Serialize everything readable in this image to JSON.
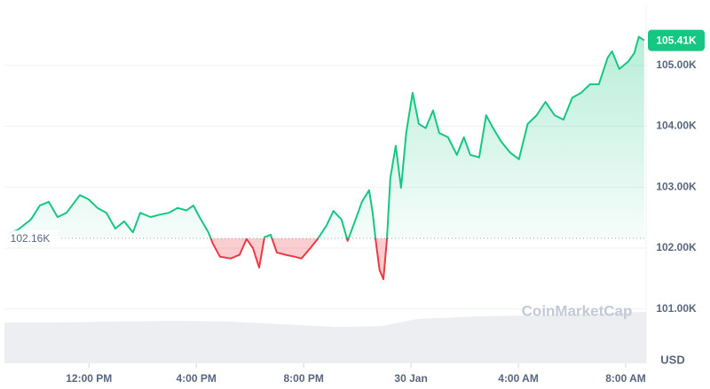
{
  "chart_data": {
    "type": "line",
    "xlim": [
      8.85,
      32.76
    ],
    "xticks": [
      {
        "value": 12,
        "label": "12:00 PM"
      },
      {
        "value": 16,
        "label": "4:00 PM"
      },
      {
        "value": 20,
        "label": "8:00 PM"
      },
      {
        "value": 24,
        "label": "30 Jan"
      },
      {
        "value": 28,
        "label": "4:00 AM"
      },
      {
        "value": 32,
        "label": "8:00 AM"
      }
    ],
    "ylim": [
      100.11,
      106.0
    ],
    "yticks": [
      {
        "value": 101,
        "label": "101.00K"
      },
      {
        "value": 102,
        "label": "102.00K"
      },
      {
        "value": 103,
        "label": "103.00K"
      },
      {
        "value": 104,
        "label": "104.00K"
      },
      {
        "value": 105,
        "label": "105.00K"
      }
    ],
    "grid": true,
    "y_unit": "USD",
    "watermark": "CoinMarketCap",
    "baseline": {
      "value": 102.16,
      "label": "102.16K"
    },
    "last_price": {
      "value": 105.41,
      "label": "105.41K"
    },
    "up_color": "#16c784",
    "down_color": "#ea3943",
    "x": [
      9.02,
      9.35,
      9.84,
      10.17,
      10.5,
      10.83,
      11.16,
      11.66,
      11.99,
      12.32,
      12.65,
      12.98,
      13.31,
      13.64,
      13.91,
      14.3,
      14.64,
      14.97,
      15.3,
      15.63,
      15.89,
      16.12,
      16.45,
      16.62,
      16.88,
      17.28,
      17.61,
      17.87,
      18.11,
      18.34,
      18.54,
      18.77,
      19.0,
      19.33,
      19.66,
      19.92,
      20.25,
      20.52,
      20.85,
      21.11,
      21.41,
      21.64,
      21.91,
      22.17,
      22.44,
      22.57,
      22.7,
      22.83,
      22.97,
      23.1,
      23.23,
      23.43,
      23.63,
      23.82,
      24.06,
      24.29,
      24.55,
      24.82,
      25.05,
      25.38,
      25.71,
      25.97,
      26.21,
      26.54,
      26.8,
      27.06,
      27.36,
      27.69,
      28.02,
      28.35,
      28.68,
      29.01,
      29.35,
      29.68,
      30.01,
      30.34,
      30.67,
      31.0,
      31.33,
      31.49,
      31.76,
      32.09,
      32.32,
      32.49,
      32.69
    ],
    "values": [
      102.25,
      102.3,
      102.47,
      102.7,
      102.76,
      102.51,
      102.58,
      102.87,
      102.8,
      102.66,
      102.58,
      102.32,
      102.44,
      102.26,
      102.58,
      102.51,
      102.55,
      102.58,
      102.66,
      102.62,
      102.7,
      102.51,
      102.26,
      102.07,
      101.86,
      101.83,
      101.89,
      102.15,
      102.0,
      101.68,
      102.18,
      102.22,
      101.93,
      101.89,
      101.86,
      101.83,
      102.0,
      102.15,
      102.37,
      102.61,
      102.47,
      102.12,
      102.44,
      102.76,
      102.95,
      102.58,
      102.07,
      101.64,
      101.49,
      102.13,
      103.15,
      103.68,
      102.99,
      103.89,
      104.55,
      104.04,
      103.97,
      104.26,
      103.89,
      103.82,
      103.53,
      103.82,
      103.53,
      103.49,
      104.18,
      103.97,
      103.75,
      103.57,
      103.46,
      104.04,
      104.18,
      104.4,
      104.18,
      104.11,
      104.47,
      104.55,
      104.69,
      104.69,
      105.13,
      105.23,
      104.94,
      105.06,
      105.2,
      105.47,
      105.41
    ]
  }
}
